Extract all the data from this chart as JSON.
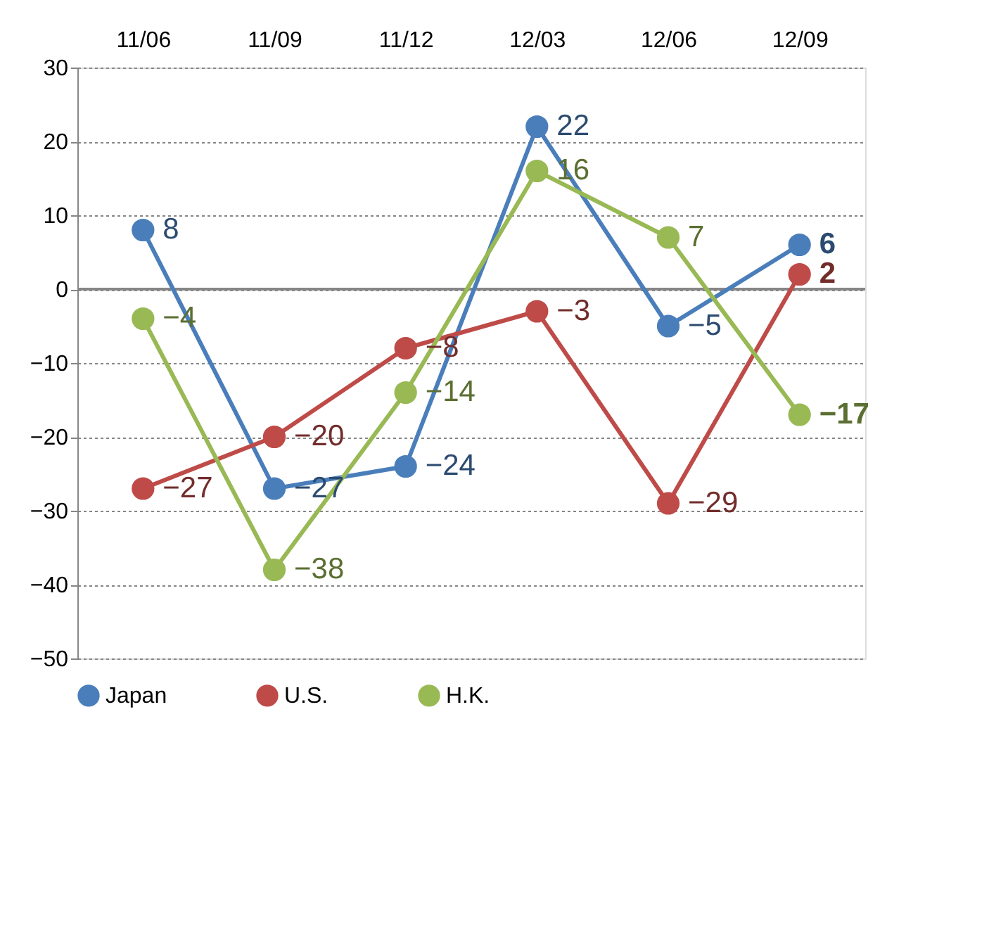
{
  "chart_data": {
    "type": "line",
    "categories": [
      "11/06",
      "11/09",
      "11/12",
      "12/03",
      "12/06",
      "12/09"
    ],
    "series": [
      {
        "name": "Japan",
        "color": "#4a7ebb",
        "values": [
          8,
          -27,
          -24,
          22,
          -5,
          6
        ]
      },
      {
        "name": "U.S.",
        "color": "#be4b48",
        "values": [
          -27,
          -20,
          -8,
          -3,
          -29,
          2
        ]
      },
      {
        "name": "H.K.",
        "color": "#98b954",
        "values": [
          -4,
          -38,
          -14,
          16,
          7,
          -17
        ]
      }
    ],
    "ylim": [
      -50,
      30
    ],
    "yticks": [
      -50,
      -40,
      -30,
      -20,
      -10,
      0,
      10,
      20,
      30
    ],
    "grid": "y",
    "legend": "bottom",
    "marker": "circle",
    "line_style": "solid",
    "data_labels": true,
    "ref_lines": [
      {
        "axis": "y",
        "value": 0,
        "color": "#868686"
      }
    ]
  }
}
